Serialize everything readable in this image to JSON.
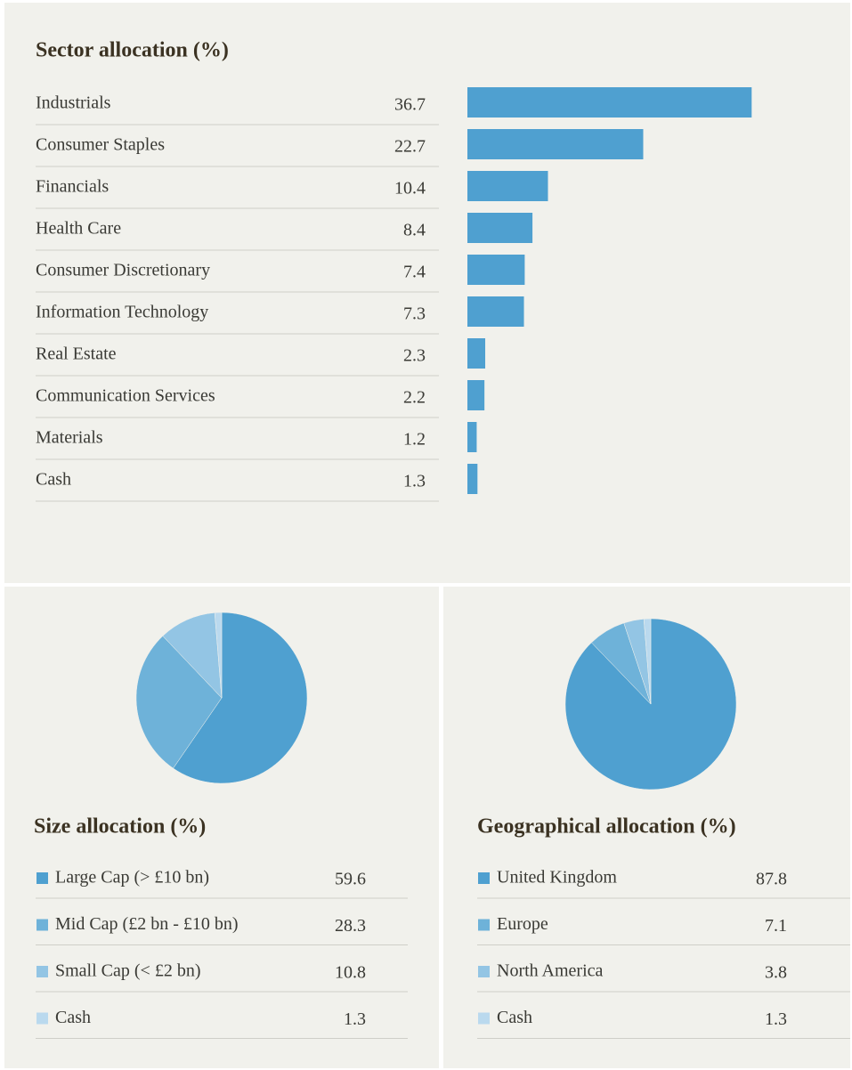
{
  "chart_data": [
    {
      "type": "bar",
      "title": "Sector allocation (%)",
      "categories": [
        "Industrials",
        "Consumer Staples",
        "Financials",
        "Health Care",
        "Consumer Discretionary",
        "Information Technology",
        "Real Estate",
        "Communication Services",
        "Materials",
        "Cash"
      ],
      "values": [
        36.7,
        22.7,
        10.4,
        8.4,
        7.4,
        7.3,
        2.3,
        2.2,
        1.2,
        1.3
      ],
      "color": "#4fa0d0"
    },
    {
      "type": "pie",
      "title": "Size allocation (%)",
      "categories": [
        "Large Cap (> £10 bn)",
        "Mid Cap (£2 bn - £10 bn)",
        "Small Cap (< £2 bn)",
        "Cash"
      ],
      "values": [
        59.6,
        28.3,
        10.8,
        1.3
      ],
      "colors": [
        "#4fa0d0",
        "#6eb2d9",
        "#93c5e4",
        "#bad9ee"
      ]
    },
    {
      "type": "pie",
      "title": "Geographical allocation (%)",
      "categories": [
        "United Kingdom",
        "Europe",
        "North America",
        "Cash"
      ],
      "values": [
        87.8,
        7.1,
        3.8,
        1.3
      ],
      "colors": [
        "#4fa0d0",
        "#6eb2d9",
        "#93c5e4",
        "#bad9ee"
      ]
    }
  ]
}
